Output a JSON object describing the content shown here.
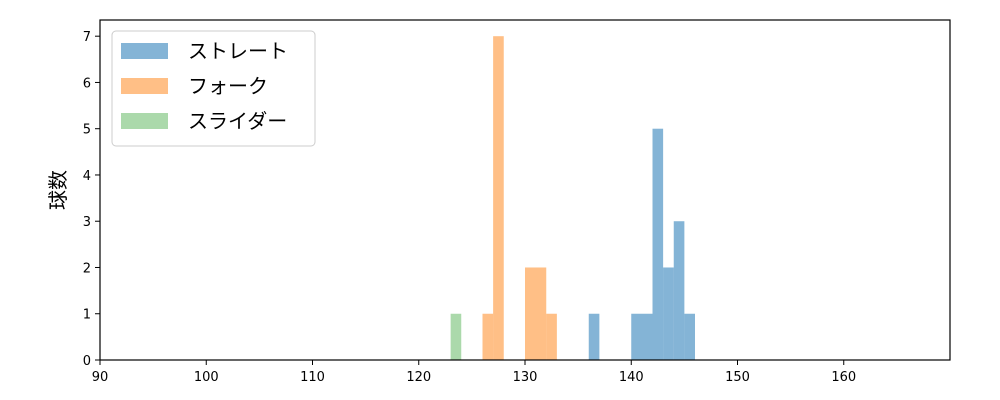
{
  "chart_data": {
    "type": "histogram",
    "title": "",
    "xlabel": "",
    "ylabel": "球数",
    "xlim": [
      90,
      170
    ],
    "ylim": [
      0,
      7.35
    ],
    "xticks": [
      90,
      100,
      110,
      120,
      130,
      140,
      150,
      160
    ],
    "yticks": [
      0,
      1,
      2,
      3,
      4,
      5,
      6,
      7
    ],
    "grid": false,
    "legend_position": "top-left",
    "series": [
      {
        "name": "ストレート",
        "color": "#1f77b4",
        "opacity": 0.55,
        "bins": [
          {
            "x0": 136,
            "x1": 137,
            "count": 1
          },
          {
            "x0": 140,
            "x1": 142,
            "count": 1
          },
          {
            "x0": 142,
            "x1": 143,
            "count": 5
          },
          {
            "x0": 143,
            "x1": 144,
            "count": 2
          },
          {
            "x0": 144,
            "x1": 145,
            "count": 3
          },
          {
            "x0": 145,
            "x1": 146,
            "count": 1
          }
        ]
      },
      {
        "name": "フォーク",
        "color": "#ff7f0e",
        "opacity": 0.5,
        "bins": [
          {
            "x0": 126,
            "x1": 127,
            "count": 1
          },
          {
            "x0": 127,
            "x1": 128,
            "count": 7
          },
          {
            "x0": 130,
            "x1": 132,
            "count": 2
          },
          {
            "x0": 132,
            "x1": 133,
            "count": 1
          }
        ]
      },
      {
        "name": "スライダー",
        "color": "#2ca02c",
        "opacity": 0.4,
        "bins": [
          {
            "x0": 123,
            "x1": 124,
            "count": 1
          }
        ]
      }
    ]
  }
}
